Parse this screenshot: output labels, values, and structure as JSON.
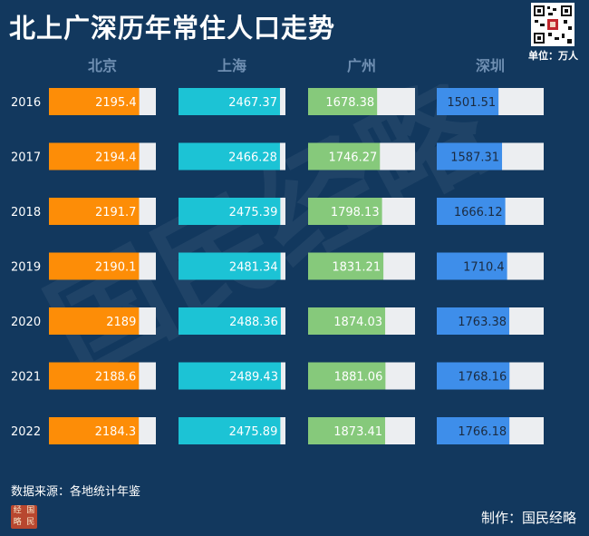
{
  "title": "北上广深历年常住人口走势",
  "unit": "单位：万人",
  "watermark": "国民经略",
  "source": "数据来源：各地统计年鉴",
  "maker": "制作：国民经略",
  "logo_chars": [
    "经",
    "国",
    "略",
    "民"
  ],
  "chart_data": {
    "type": "bar",
    "title": "北上广深历年常住人口走势",
    "unit": "万人",
    "categories": [
      "2016",
      "2017",
      "2018",
      "2019",
      "2020",
      "2021",
      "2022"
    ],
    "series": [
      {
        "name": "北京",
        "color": "#fd8d07",
        "values": [
          2195.4,
          2194.4,
          2191.7,
          2190.1,
          2189,
          2188.6,
          2184.3
        ]
      },
      {
        "name": "上海",
        "color": "#1cc3d5",
        "values": [
          2467.37,
          2466.28,
          2475.39,
          2481.34,
          2488.36,
          2489.43,
          2475.89
        ]
      },
      {
        "name": "广州",
        "color": "#86c97b",
        "values": [
          1678.38,
          1746.27,
          1798.13,
          1831.21,
          1874.03,
          1881.06,
          1873.41
        ]
      },
      {
        "name": "深圳",
        "color": "#3e8eea",
        "values": [
          1501.51,
          1587.31,
          1666.12,
          1710.4,
          1763.38,
          1768.16,
          1766.18
        ]
      }
    ],
    "bar_max": 2600,
    "bar_background": "#eceef1"
  }
}
